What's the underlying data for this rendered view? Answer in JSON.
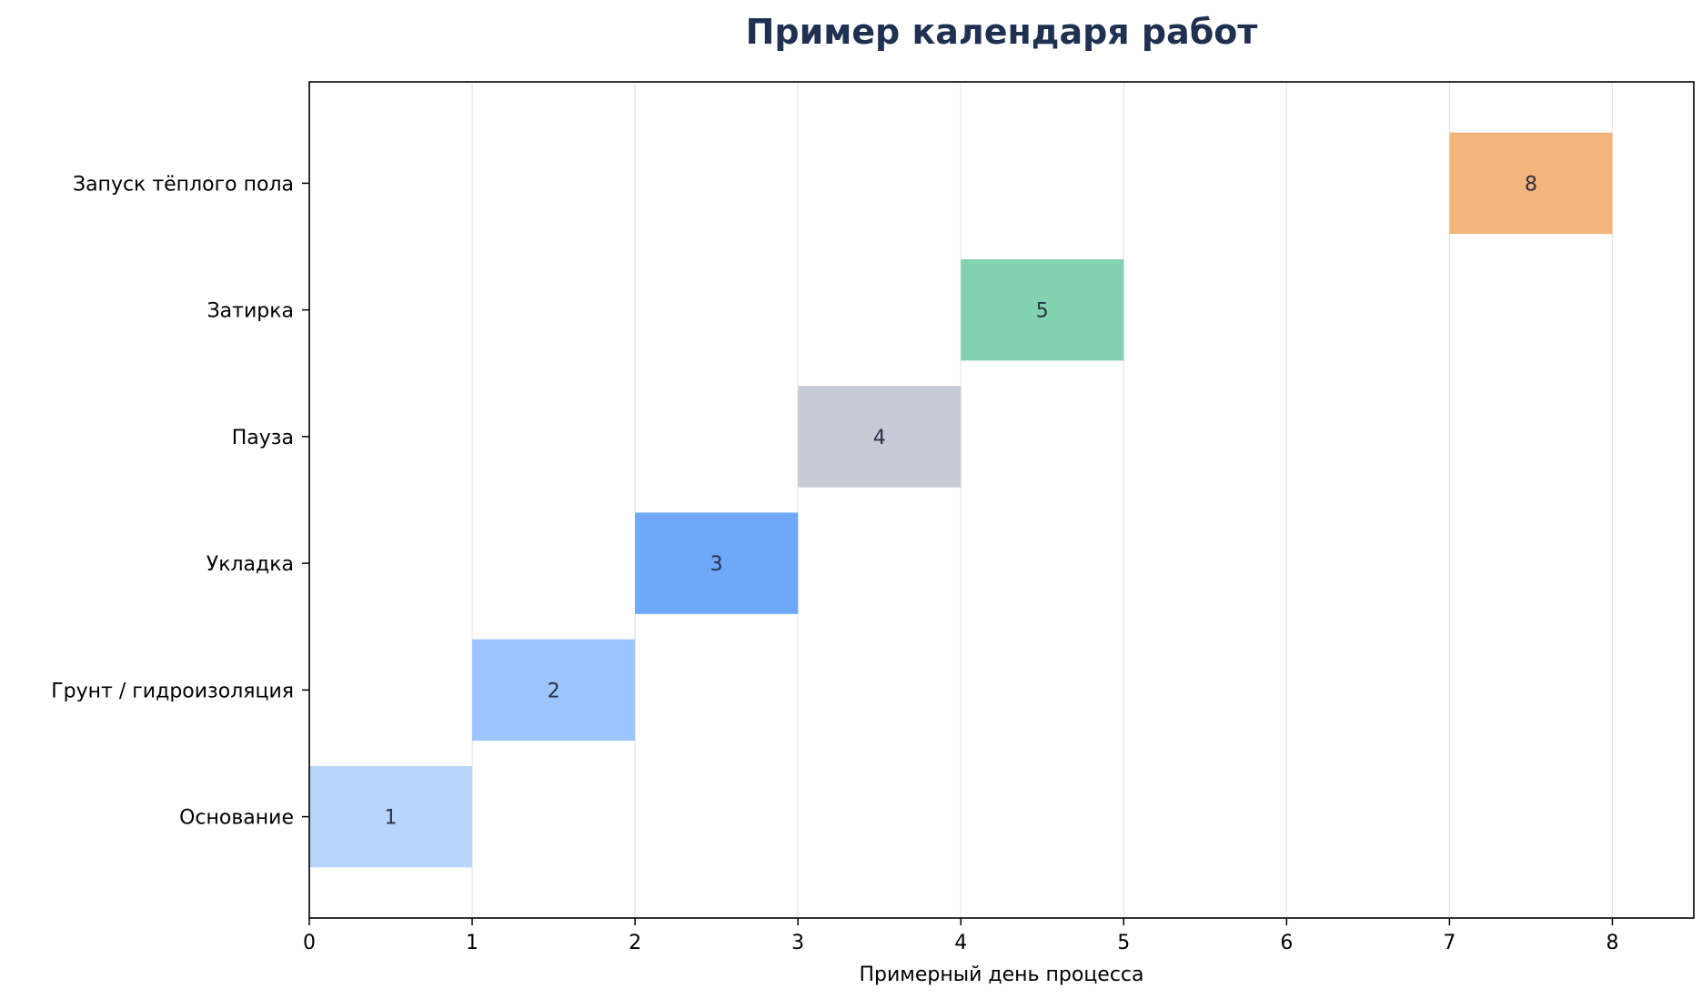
{
  "chart_data": {
    "type": "bar",
    "orientation": "horizontal",
    "title": "Пример календаря работ",
    "xlabel": "Примерный день процесса",
    "ylabel": "",
    "xlim": [
      0,
      8.5
    ],
    "xticks": [
      0,
      1,
      2,
      3,
      4,
      5,
      6,
      7,
      8
    ],
    "grid": "vertical",
    "tasks": [
      {
        "name": "Основание",
        "start": 0,
        "end": 1,
        "day_label": "1",
        "color": "#b7d5fd"
      },
      {
        "name": "Грунт / гидроизоляция",
        "start": 1,
        "end": 2,
        "day_label": "2",
        "color": "#9bc5fc"
      },
      {
        "name": "Укладка",
        "start": 2,
        "end": 3,
        "day_label": "3",
        "color": "#6ea8fb"
      },
      {
        "name": "Пауза",
        "start": 3,
        "end": 4,
        "day_label": "4",
        "color": "#c7cbd5"
      },
      {
        "name": "Затирка",
        "start": 4,
        "end": 5,
        "day_label": "5",
        "color": "#82d1b1"
      },
      {
        "name": "Запуск тёплого пола",
        "start": 7,
        "end": 8,
        "day_label": "8",
        "color": "#f3b57b"
      }
    ]
  }
}
